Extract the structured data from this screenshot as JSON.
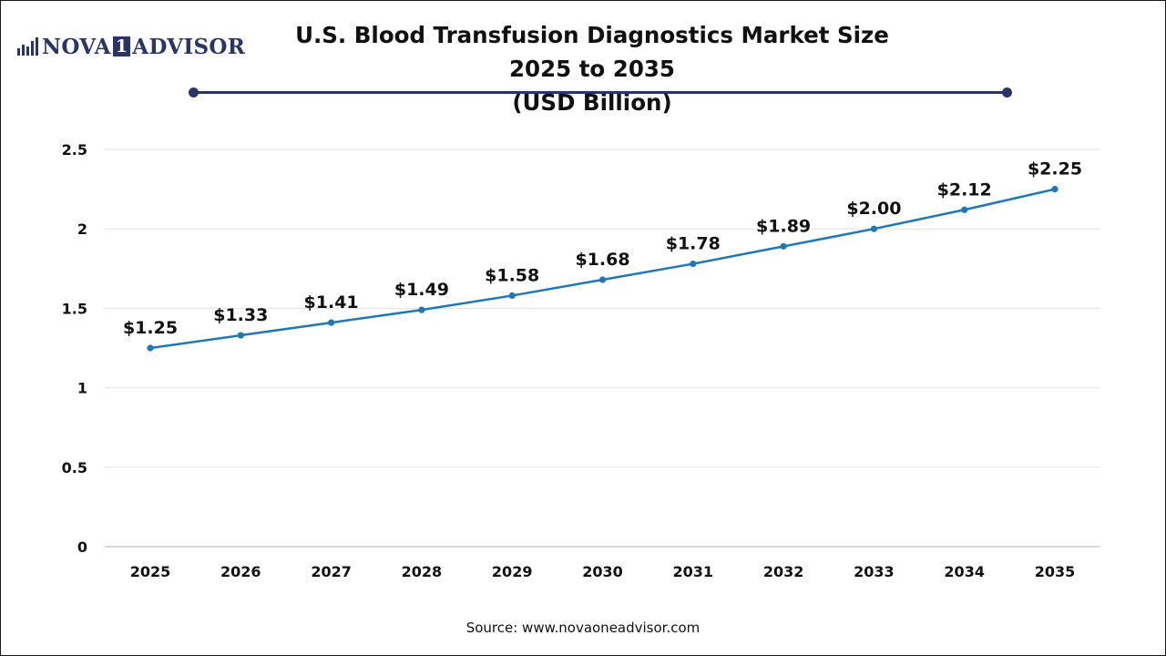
{
  "brand": {
    "logo_left": "NOVA",
    "logo_mid": "1",
    "logo_right": "ADVISOR",
    "color": "#2a3466"
  },
  "chart_data": {
    "type": "line",
    "title_line1": "U.S. Blood Transfusion Diagnostics Market Size 2025 to 2035",
    "title_line2": "(USD Billion)",
    "categories": [
      "2025",
      "2026",
      "2027",
      "2028",
      "2029",
      "2030",
      "2031",
      "2032",
      "2033",
      "2034",
      "2035"
    ],
    "series": [
      {
        "values": [
          1.25,
          1.33,
          1.41,
          1.49,
          1.58,
          1.68,
          1.78,
          1.89,
          2.0,
          2.12,
          2.25
        ],
        "labels": [
          "$1.25",
          "$1.33",
          "$1.41",
          "$1.49",
          "$1.58",
          "$1.68",
          "$1.78",
          "$1.89",
          "$2.00",
          "$2.12",
          "$2.25"
        ],
        "color": "#1f77b4"
      }
    ],
    "ylim": [
      0,
      2.5
    ],
    "yticks": [
      "0",
      "0.5",
      "1",
      "1.5",
      "2",
      "2.5"
    ],
    "xlabel": "",
    "ylabel": "",
    "grid": true,
    "legend": "none"
  },
  "footer": {
    "source": "Source: www.novaoneadvisor.com"
  }
}
